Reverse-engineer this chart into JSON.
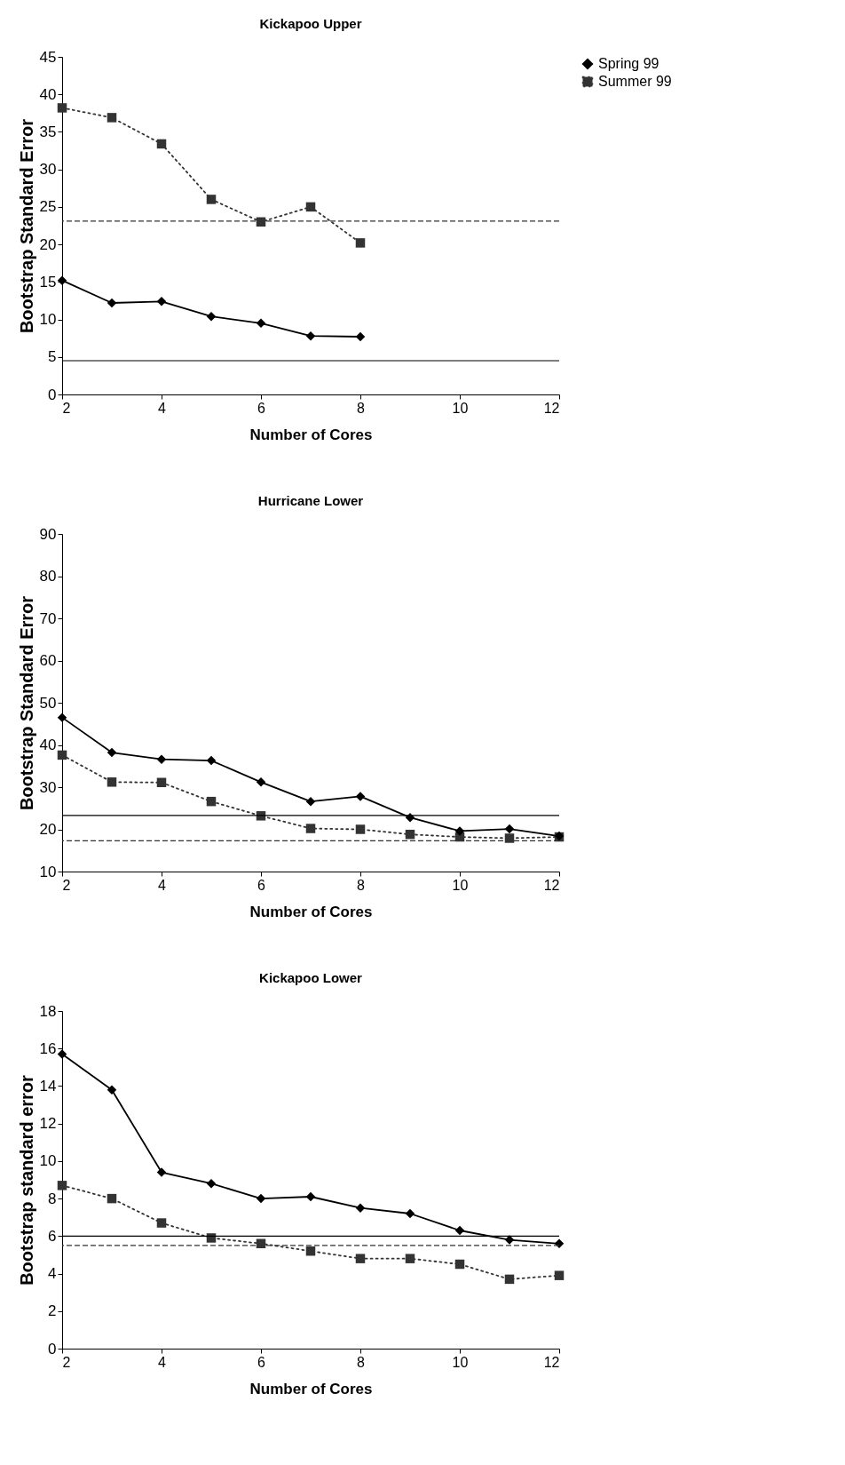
{
  "chart_data": [
    {
      "type": "line",
      "title": "Kickapoo Upper",
      "xlabel": "Number of Cores",
      "ylabel": "Bootstrap Standard Error",
      "xlim": [
        2,
        12
      ],
      "xticks": [
        2,
        4,
        6,
        8,
        10,
        12
      ],
      "ylim": [
        0,
        45
      ],
      "yticks": [
        0,
        5,
        10,
        15,
        20,
        25,
        30,
        35,
        40,
        45
      ],
      "legend": "top right",
      "series": [
        {
          "name": "Spring 99",
          "color": "#000000",
          "marker": "diamond",
          "line_style": "solid",
          "x": [
            2,
            3,
            4,
            5,
            6,
            7,
            8
          ],
          "values": [
            15.2,
            12.2,
            12.4,
            10.4,
            9.5,
            7.8,
            7.7
          ]
        },
        {
          "name": "Summer 99",
          "color": "#333333",
          "marker": "square",
          "line_style": "dotted",
          "x": [
            2,
            3,
            4,
            5,
            6,
            7,
            8
          ],
          "values": [
            38.2,
            36.9,
            33.4,
            26.0,
            23.0,
            25.0,
            20.2
          ]
        }
      ],
      "ref_lines": [
        {
          "axis": "y",
          "value": 4.5,
          "line_style": "solid",
          "color": "#000000"
        },
        {
          "axis": "y",
          "value": 23.1,
          "line_style": "dashed",
          "color": "#333333"
        }
      ]
    },
    {
      "type": "line",
      "title": "Hurricane Lower",
      "xlabel": "Number of Cores",
      "ylabel": "Bootstrap Standard Error",
      "xlim": [
        2,
        12
      ],
      "xticks": [
        2,
        4,
        6,
        8,
        10,
        12
      ],
      "ylim": [
        10,
        90
      ],
      "yticks": [
        10,
        20,
        30,
        40,
        50,
        60,
        70,
        80,
        90
      ],
      "legend": "top right",
      "series": [
        {
          "name": "Spring 99",
          "color": "#000000",
          "marker": "diamond",
          "line_style": "solid",
          "x": [
            2,
            3,
            4,
            5,
            6,
            7,
            8,
            9,
            10,
            11,
            12
          ],
          "values": [
            46.5,
            38.2,
            36.6,
            36.3,
            31.2,
            26.6,
            27.8,
            22.8,
            19.6,
            20.1,
            18.4
          ]
        },
        {
          "name": "Summer 99",
          "color": "#333333",
          "marker": "square",
          "line_style": "dotted",
          "x": [
            2,
            3,
            4,
            5,
            6,
            7,
            8,
            9,
            10,
            11,
            12
          ],
          "values": [
            37.6,
            31.2,
            31.1,
            26.6,
            23.2,
            20.2,
            20.0,
            18.8,
            18.2,
            17.9,
            18.2
          ]
        }
      ],
      "ref_lines": [
        {
          "axis": "y",
          "value": 23.3,
          "line_style": "solid",
          "color": "#000000"
        },
        {
          "axis": "y",
          "value": 17.3,
          "line_style": "dashed",
          "color": "#333333"
        }
      ]
    },
    {
      "type": "line",
      "title": "Kickapoo Lower",
      "xlabel": "Number of Cores",
      "ylabel": "Bootstrap standard error",
      "xlim": [
        2,
        12
      ],
      "xticks": [
        2,
        4,
        6,
        8,
        10,
        12
      ],
      "ylim": [
        0,
        18
      ],
      "yticks": [
        0,
        2,
        4,
        6,
        8,
        10,
        12,
        14,
        16,
        18
      ],
      "legend": "top right",
      "series": [
        {
          "name": "Spring 99",
          "color": "#000000",
          "marker": "diamond",
          "line_style": "solid",
          "x": [
            2,
            3,
            4,
            5,
            6,
            7,
            8,
            9,
            10,
            11,
            12
          ],
          "values": [
            15.7,
            13.8,
            9.4,
            8.8,
            8.0,
            8.1,
            7.5,
            7.2,
            6.3,
            5.8,
            5.6
          ]
        },
        {
          "name": "Summer 99",
          "color": "#333333",
          "marker": "square",
          "line_style": "dotted",
          "x": [
            2,
            3,
            4,
            5,
            6,
            7,
            8,
            9,
            10,
            11,
            12
          ],
          "values": [
            8.7,
            8.0,
            6.7,
            5.9,
            5.6,
            5.2,
            4.8,
            4.8,
            4.5,
            3.7,
            3.9
          ]
        }
      ],
      "ref_lines": [
        {
          "axis": "y",
          "value": 6.0,
          "line_style": "solid",
          "color": "#000000"
        },
        {
          "axis": "y",
          "value": 5.5,
          "line_style": "dashed",
          "color": "#333333"
        }
      ]
    }
  ]
}
